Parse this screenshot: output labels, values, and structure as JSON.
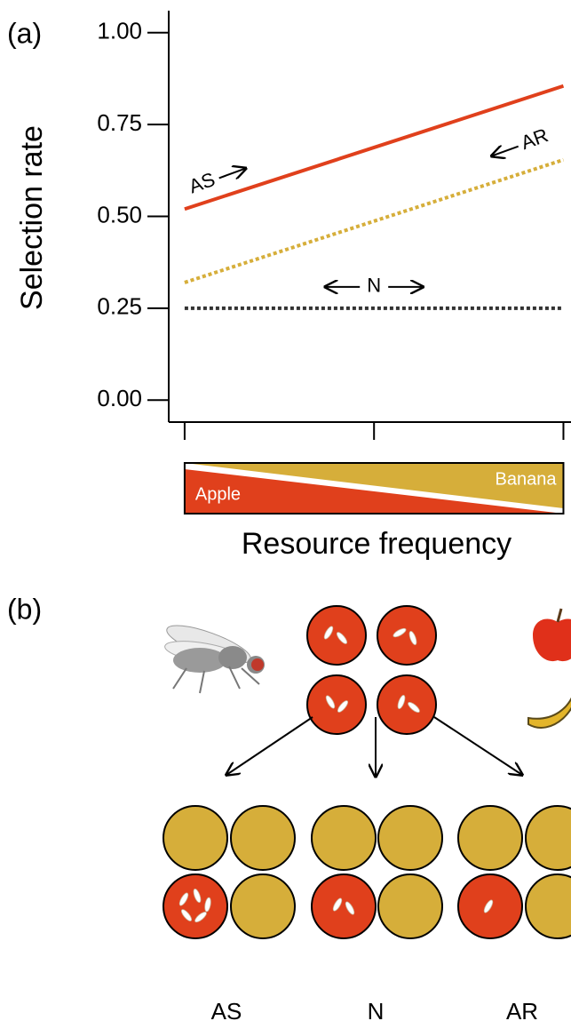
{
  "panels": {
    "a": "(a)",
    "b": "(b)"
  },
  "chart_data": {
    "type": "line",
    "ylabel": "Selection rate",
    "xlabel": "Resource frequency",
    "x": [
      0,
      1
    ],
    "xlim": [
      -0.042,
      1.02
    ],
    "xticks": [
      0,
      0.5,
      1
    ],
    "ylim": [
      -0.06,
      1.06
    ],
    "yticks": [
      {
        "value": 0,
        "label": "0.00"
      },
      {
        "value": 0.25,
        "label": "0.25"
      },
      {
        "value": 0.5,
        "label": "0.50"
      },
      {
        "value": 0.75,
        "label": "0.75"
      },
      {
        "value": 1,
        "label": "1.00"
      }
    ],
    "series": [
      {
        "name": "AS",
        "color": "#e0401c",
        "style": "solid",
        "values": [
          0.52,
          0.855
        ]
      },
      {
        "name": "AR",
        "color": "#d6ae3a",
        "style": "dotted",
        "values": [
          0.32,
          0.654
        ]
      },
      {
        "name": "N",
        "color": "#333333",
        "style": "dotted",
        "values": [
          0.25,
          0.25
        ]
      }
    ],
    "resources": [
      "Apple",
      "Banana"
    ]
  },
  "diagram": {
    "groups": [
      "AS",
      "N",
      "AR"
    ]
  }
}
